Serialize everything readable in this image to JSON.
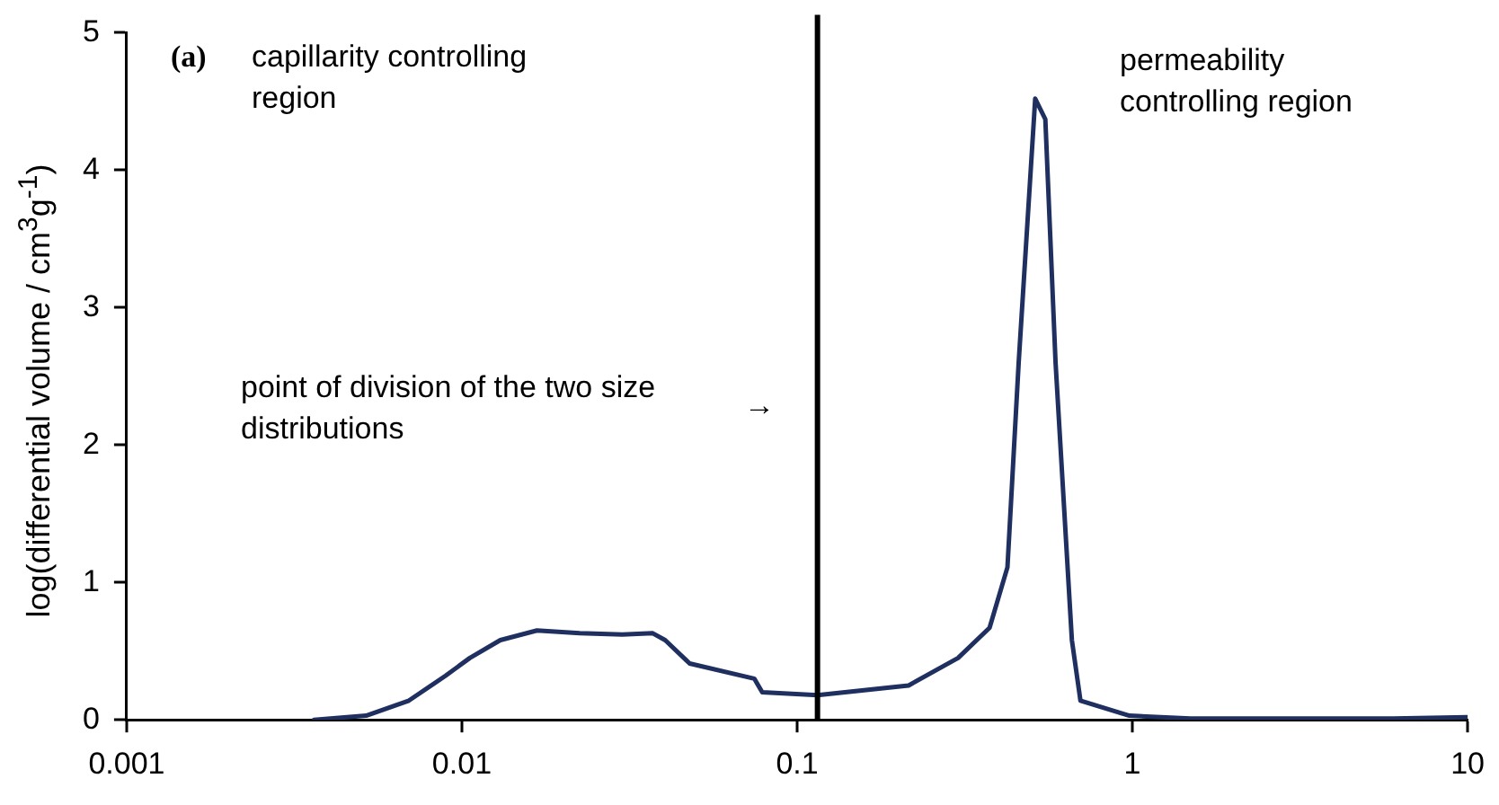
{
  "chart_data": {
    "type": "line",
    "ylabel": "log(differential volume / cm$^{3}$g$^{-1}$)",
    "annotations": [
      "(a)",
      "capillarity controlling region",
      "permeability controlling region",
      "point of division of the two size distributions",
      "→"
    ],
    "x": [
      0.00362,
      0.00518,
      0.00695,
      0.00893,
      0.01056,
      0.01302,
      0.01675,
      0.02246,
      0.0301,
      0.0371,
      0.0404,
      0.0478,
      0.0745,
      0.0787,
      0.115,
      0.215,
      0.302,
      0.375,
      0.424,
      0.458,
      0.513,
      0.55,
      0.59,
      0.66,
      0.7,
      0.98,
      1.49,
      3,
      6,
      10
    ],
    "series": [
      {
        "color": "#1f2f5f",
        "values": [
          0,
          0.03,
          0.14,
          0.32,
          0.45,
          0.58,
          0.65,
          0.63,
          0.62,
          0.63,
          0.58,
          0.41,
          0.3,
          0.2,
          0.18,
          0.25,
          0.45,
          0.67,
          1.11,
          2.6,
          4.52,
          4.37,
          2.6,
          0.58,
          0.14,
          0.03,
          0.01,
          0.01,
          0.01,
          0.02
        ]
      }
    ],
    "xlim": [
      0.001,
      10
    ],
    "xticks": [
      0.001,
      0.01,
      0.1,
      1,
      10
    ],
    "ylim": [
      0,
      5
    ],
    "yticks": [
      0,
      1,
      2,
      3,
      4,
      5
    ],
    "log": "x",
    "grid": false,
    "legend": false,
    "marker": "none",
    "line_style": "solid",
    "ref_lines": [
      {
        "axis": "x",
        "value": 0.115,
        "color": "#000000"
      }
    ]
  }
}
